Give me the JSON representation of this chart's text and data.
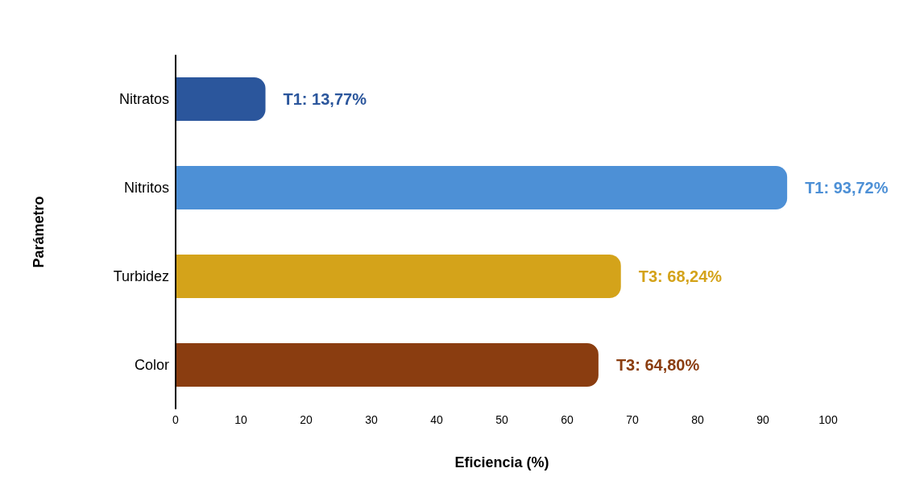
{
  "chart_data": {
    "type": "bar",
    "orientation": "horizontal",
    "xlabel": "Eficiencia (%)",
    "ylabel": "Parámetro",
    "categories": [
      "Nitratos",
      "Nitritos",
      "Turbidez",
      "Color"
    ],
    "values": [
      13.77,
      93.72,
      68.24,
      64.8
    ],
    "colors": [
      "#2b569c",
      "#4d90d6",
      "#d4a31a",
      "#8a3d10"
    ],
    "value_labels": [
      "T1: 13,77%",
      "T1: 93,72%",
      "T3: 68,24%",
      "T3: 64,80%"
    ],
    "xlim": [
      0,
      100
    ],
    "xticks": [
      0,
      10,
      20,
      30,
      40,
      50,
      60,
      70,
      80,
      90,
      100
    ],
    "grid": false,
    "legend": false
  }
}
